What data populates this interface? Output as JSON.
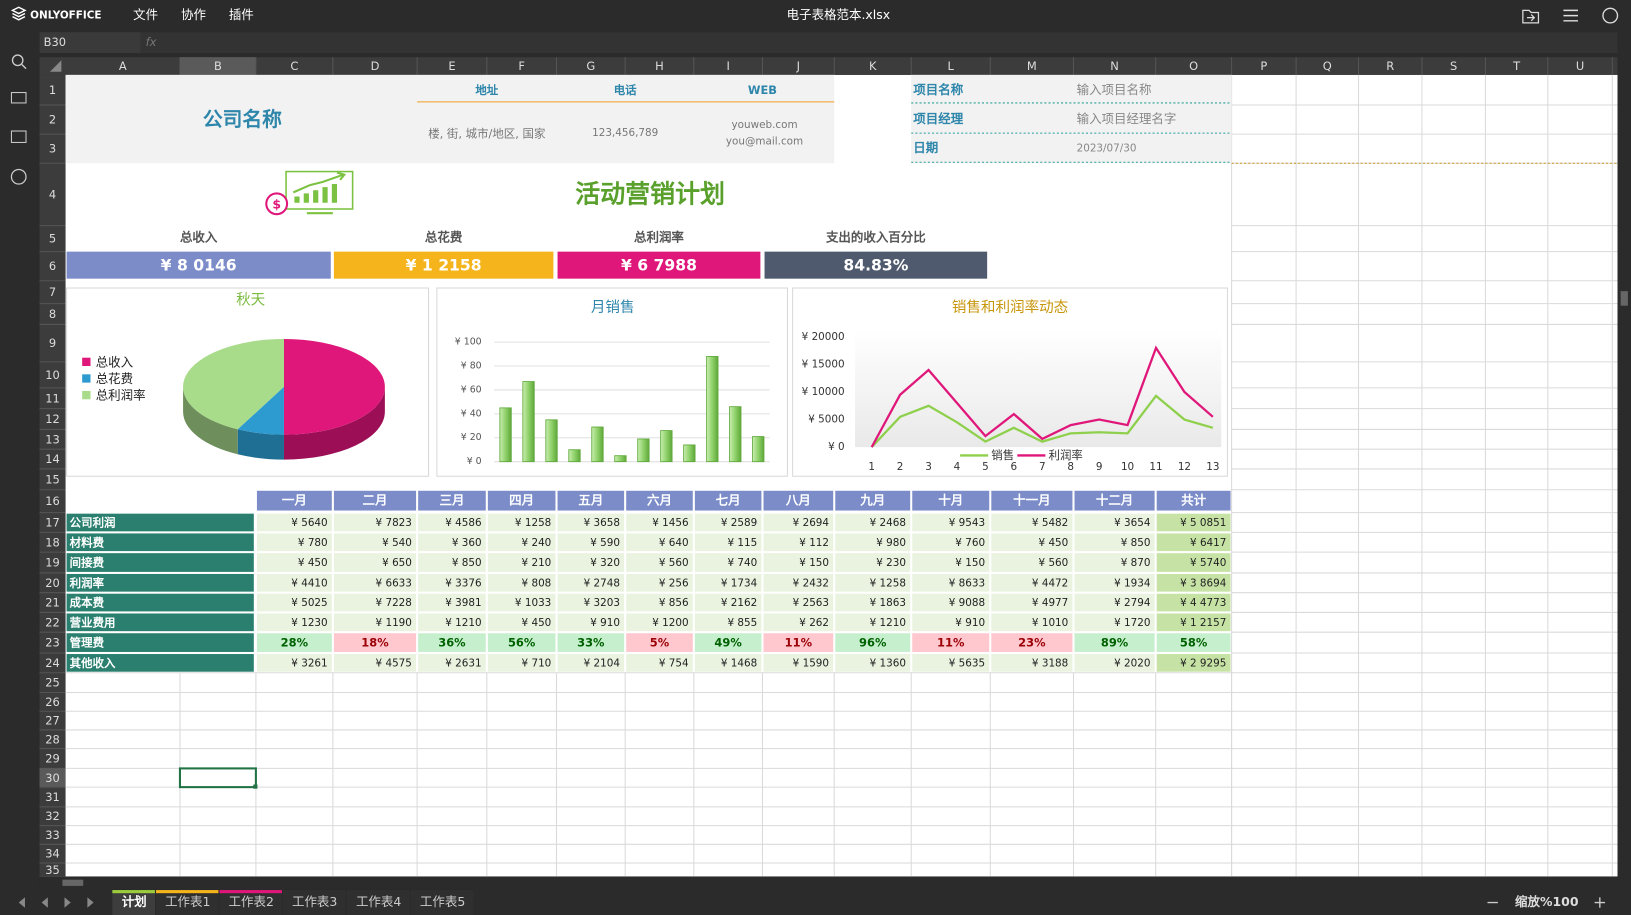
{
  "app": {
    "brand": "ONLYOFFICE",
    "menu": [
      "文件",
      "协作",
      "插件"
    ],
    "file_name": "电子表格范本.xlsx",
    "cell_ref": "B30",
    "fx": "fx",
    "zoom": "缩放%100",
    "tabs": [
      "计划",
      "工作表1",
      "工作表2",
      "工作表3",
      "工作表4",
      "工作表5"
    ],
    "tab_colors": [
      "#9ccc3c",
      "#f5b41b",
      "#e0177a",
      null,
      null,
      null
    ]
  },
  "sheet": {
    "columns": [
      "A",
      "B",
      "C",
      "D",
      "E",
      "F",
      "G",
      "H",
      "I",
      "J",
      "K",
      "L",
      "M",
      "N",
      "O",
      "P",
      "Q",
      "R",
      "S",
      "T",
      "U"
    ],
    "rows": [
      1,
      2,
      3,
      4,
      5,
      6,
      7,
      8,
      9,
      10,
      11,
      12,
      13,
      14,
      15,
      16,
      17,
      18,
      19,
      20,
      21,
      22,
      23,
      24,
      25,
      26,
      27,
      28,
      29,
      30,
      31,
      32,
      33,
      34,
      35
    ]
  },
  "header": {
    "company": "公司名称",
    "address_label": "地址",
    "phone_label": "电话",
    "web_label": "WEB",
    "address": "楼, 街, 城市/地区, 国家",
    "phone": "123,456,789",
    "web": "youweb.com",
    "email": "you@mail.com",
    "project_name_label": "项目名称",
    "project_name": "输入项目名称",
    "manager_label": "项目经理",
    "manager": "输入项目经理名字",
    "date_label": "日期",
    "date": "2023/07/30"
  },
  "title": "活动营销计划",
  "kpis": [
    {
      "label": "总收入",
      "value": "¥ 8 0146",
      "color": "#7b8cc9"
    },
    {
      "label": "总花费",
      "value": "¥ 1 2158",
      "color": "#f5b41b"
    },
    {
      "label": "总利润率",
      "value": "¥ 6 7988",
      "color": "#e0177a"
    },
    {
      "label": "支出的收入百分比",
      "value": "84.83%",
      "color": "#4f5a6e"
    }
  ],
  "chart_data": [
    {
      "type": "pie",
      "title": "秋天",
      "categories": [
        "总收入",
        "总花费",
        "总利润率"
      ],
      "values": [
        80146,
        12158,
        67988
      ],
      "colors": [
        "#e0177a",
        "#2d9bd0",
        "#a8dc8a"
      ]
    },
    {
      "type": "bar",
      "title": "月销售",
      "values": [
        45,
        67,
        35,
        10,
        29,
        5,
        19,
        26,
        14,
        88,
        46,
        21
      ],
      "color": "#8fd16a",
      "ylim": [
        0,
        100
      ],
      "yticks": [
        {
          "value": 0,
          "label": "¥ 0"
        },
        {
          "value": 20,
          "label": "¥ 20"
        },
        {
          "value": 40,
          "label": "¥ 40"
        },
        {
          "value": 60,
          "label": "¥ 60"
        },
        {
          "value": 80,
          "label": "¥ 80"
        },
        {
          "value": 100,
          "label": "¥ 100"
        }
      ],
      "grid": true
    },
    {
      "type": "line",
      "title": "销售和利润率动态",
      "x": [
        1,
        2,
        3,
        4,
        5,
        6,
        7,
        8,
        9,
        10,
        11,
        12,
        13
      ],
      "xlim": [
        1,
        13
      ],
      "xticks": [
        1,
        2,
        3,
        4,
        5,
        6,
        7,
        8,
        9,
        10,
        11,
        12,
        13
      ],
      "ylim": [
        0,
        20000
      ],
      "yticks": [
        {
          "value": 0,
          "label": "¥ 0"
        },
        {
          "value": 5000,
          "label": "¥ 5000"
        },
        {
          "value": 10000,
          "label": "¥ 10000"
        },
        {
          "value": 15000,
          "label": "¥ 15000"
        },
        {
          "value": 20000,
          "label": "¥ 20000"
        }
      ],
      "series": [
        {
          "name": "销售",
          "color": "#8ed04c",
          "values": [
            0,
            5500,
            7500,
            4500,
            1000,
            3500,
            1000,
            2500,
            2700,
            2500,
            9300,
            5000,
            3500
          ]
        },
        {
          "name": "利润率",
          "color": "#e0177a",
          "values": [
            0,
            9500,
            14000,
            8000,
            2000,
            6000,
            1500,
            4000,
            5000,
            4000,
            18000,
            10000,
            5500
          ]
        }
      ],
      "legend": "bottom"
    }
  ],
  "table": {
    "header": [
      "一月",
      "二月",
      "三月",
      "四月",
      "五月",
      "六月",
      "七月",
      "八月",
      "九月",
      "十月",
      "十一月",
      "十二月",
      "共计"
    ],
    "rows": [
      {
        "label": "公司利润",
        "cells": [
          "¥ 5640",
          "¥ 7823",
          "¥ 4586",
          "¥ 1258",
          "¥ 3658",
          "¥ 1456",
          "¥ 2589",
          "¥ 2694",
          "¥ 2468",
          "¥ 9543",
          "¥ 5482",
          "¥ 3654",
          "¥ 5 0851"
        ]
      },
      {
        "label": "材料费",
        "cells": [
          "¥ 780",
          "¥ 540",
          "¥ 360",
          "¥ 240",
          "¥ 590",
          "¥ 640",
          "¥ 115",
          "¥ 112",
          "¥ 980",
          "¥ 760",
          "¥ 450",
          "¥ 850",
          "¥ 6417"
        ]
      },
      {
        "label": "间接费",
        "cells": [
          "¥ 450",
          "¥ 650",
          "¥ 850",
          "¥ 210",
          "¥ 320",
          "¥ 560",
          "¥ 740",
          "¥ 150",
          "¥ 230",
          "¥ 150",
          "¥ 560",
          "¥ 870",
          "¥ 5740"
        ]
      },
      {
        "label": "利润率",
        "cells": [
          "¥ 4410",
          "¥ 6633",
          "¥ 3376",
          "¥ 808",
          "¥ 2748",
          "¥ 256",
          "¥ 1734",
          "¥ 2432",
          "¥ 1258",
          "¥ 8633",
          "¥ 4472",
          "¥ 1934",
          "¥ 3 8694"
        ]
      },
      {
        "label": "成本费",
        "cells": [
          "¥ 5025",
          "¥ 7228",
          "¥ 3981",
          "¥ 1033",
          "¥ 3203",
          "¥ 856",
          "¥ 2162",
          "¥ 2563",
          "¥ 1863",
          "¥ 9088",
          "¥ 4977",
          "¥ 2794",
          "¥ 4 4773"
        ]
      },
      {
        "label": "营业费用",
        "cells": [
          "¥ 1230",
          "¥ 1190",
          "¥ 1210",
          "¥ 450",
          "¥ 910",
          "¥ 1200",
          "¥ 855",
          "¥ 262",
          "¥ 1210",
          "¥ 910",
          "¥ 1010",
          "¥ 1720",
          "¥ 1 2157"
        ]
      },
      {
        "label": "管理费",
        "cells": [
          "28%",
          "18%",
          "36%",
          "56%",
          "33%",
          "5%",
          "49%",
          "11%",
          "96%",
          "11%",
          "23%",
          "89%",
          "58%"
        ],
        "fills": [
          "#c6efce",
          "#ffc7ce",
          "#c6efce",
          "#c6efce",
          "#c6efce",
          "#ffc7ce",
          "#c6efce",
          "#ffc7ce",
          "#c6efce",
          "#ffc7ce",
          "#ffc7ce",
          "#c6efce",
          "#c6efce"
        ]
      },
      {
        "label": "其他收入",
        "cells": [
          "¥ 3261",
          "¥ 4575",
          "¥ 2631",
          "¥ 710",
          "¥ 2104",
          "¥ 754",
          "¥ 1468",
          "¥ 1590",
          "¥ 1360",
          "¥ 5635",
          "¥ 3188",
          "¥ 2020",
          "¥ 2 9295"
        ]
      }
    ]
  }
}
